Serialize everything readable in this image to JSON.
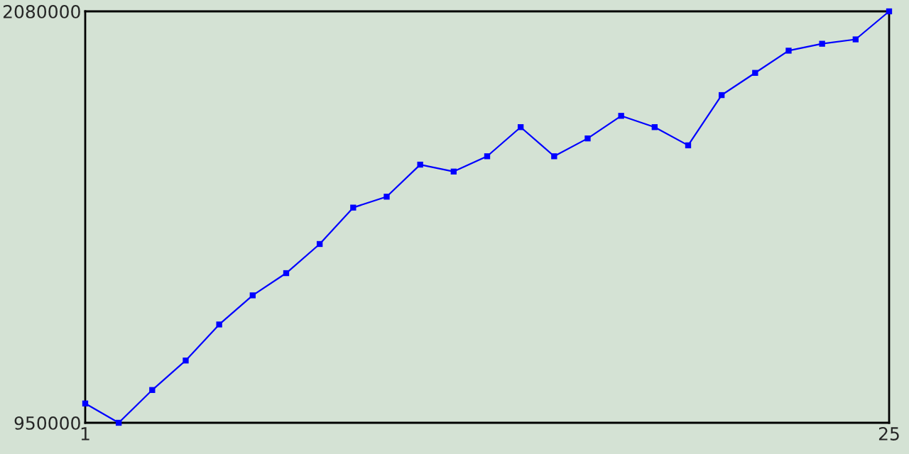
{
  "chart_data": {
    "type": "line",
    "x": [
      1,
      2,
      3,
      4,
      5,
      6,
      7,
      8,
      9,
      10,
      11,
      12,
      13,
      14,
      15,
      16,
      17,
      18,
      19,
      20,
      21,
      22,
      23,
      24,
      25
    ],
    "series": [
      {
        "color": "#0000ff",
        "values": [
          1003000,
          950000,
          1040000,
          1121000,
          1220000,
          1300000,
          1361000,
          1441000,
          1541000,
          1571000,
          1659000,
          1640000,
          1682000,
          1762000,
          1682000,
          1731000,
          1793000,
          1762000,
          1712000,
          1850000,
          1911000,
          1972000,
          1991000,
          2003000,
          2080000
        ]
      }
    ],
    "xlim": [
      1,
      25
    ],
    "ylim": [
      950000,
      2080000
    ],
    "xticks": [
      1,
      25
    ],
    "yticks": [
      950000,
      2080000
    ],
    "marker": "square",
    "line_style": "solid"
  }
}
